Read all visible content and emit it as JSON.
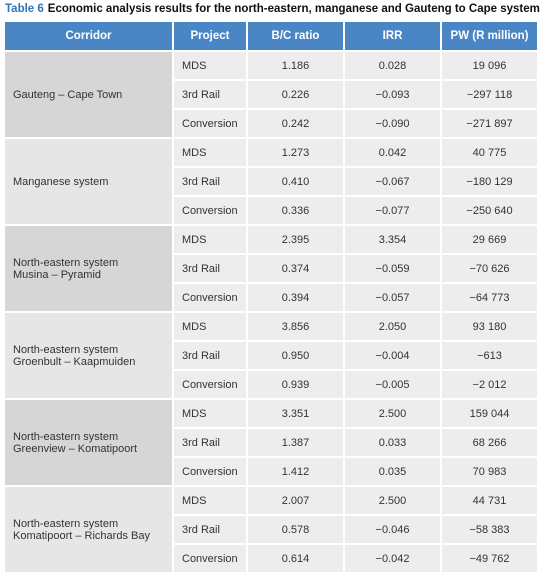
{
  "caption": {
    "label": "Table 6",
    "title": "Economic analysis results for the north-eastern, manganese and Gauteng to Cape systems"
  },
  "table": {
    "header": [
      "Corridor",
      "Project",
      "B/C ratio",
      "IRR",
      "PW (R million)"
    ],
    "groups": [
      {
        "corridor": [
          "Gauteng – Cape Town"
        ],
        "rows": [
          [
            "MDS",
            "1.186",
            "0.028",
            "19 096"
          ],
          [
            "3rd Rail",
            "0.226",
            "−0.093",
            "−297 118"
          ],
          [
            "Conversion",
            "0.242",
            "−0.090",
            "−271 897"
          ]
        ]
      },
      {
        "corridor": [
          "Manganese system"
        ],
        "rows": [
          [
            "MDS",
            "1.273",
            "0.042",
            "40 775"
          ],
          [
            "3rd Rail",
            "0.410",
            "−0.067",
            "−180 129"
          ],
          [
            "Conversion",
            "0.336",
            "−0.077",
            "−250 640"
          ]
        ]
      },
      {
        "corridor": [
          "North-eastern system",
          "Musina – Pyramid"
        ],
        "rows": [
          [
            "MDS",
            "2.395",
            "3.354",
            "29 669"
          ],
          [
            "3rd Rail",
            "0.374",
            "−0.059",
            "−70 626"
          ],
          [
            "Conversion",
            "0.394",
            "−0.057",
            "−64 773"
          ]
        ]
      },
      {
        "corridor": [
          "North-eastern system",
          "Groenbult – Kaapmuiden"
        ],
        "rows": [
          [
            "MDS",
            "3.856",
            "2.050",
            "93 180"
          ],
          [
            "3rd Rail",
            "0.950",
            "−0.004",
            "−613"
          ],
          [
            "Conversion",
            "0.939",
            "−0.005",
            "−2 012"
          ]
        ]
      },
      {
        "corridor": [
          "North-eastern system",
          "Greenview – Komatipoort"
        ],
        "rows": [
          [
            "MDS",
            "3.351",
            "2.500",
            "159 044"
          ],
          [
            "3rd Rail",
            "1.387",
            "0.033",
            "68 266"
          ],
          [
            "Conversion",
            "1.412",
            "0.035",
            "70 983"
          ]
        ]
      },
      {
        "corridor": [
          "North-eastern system",
          "Komatipoort – Richards Bay"
        ],
        "rows": [
          [
            "MDS",
            "2.007",
            "2.500",
            "44 731"
          ],
          [
            "3rd Rail",
            "0.578",
            "−0.046",
            "−58 383"
          ],
          [
            "Conversion",
            "0.614",
            "−0.042",
            "−49 762"
          ]
        ]
      }
    ]
  }
}
